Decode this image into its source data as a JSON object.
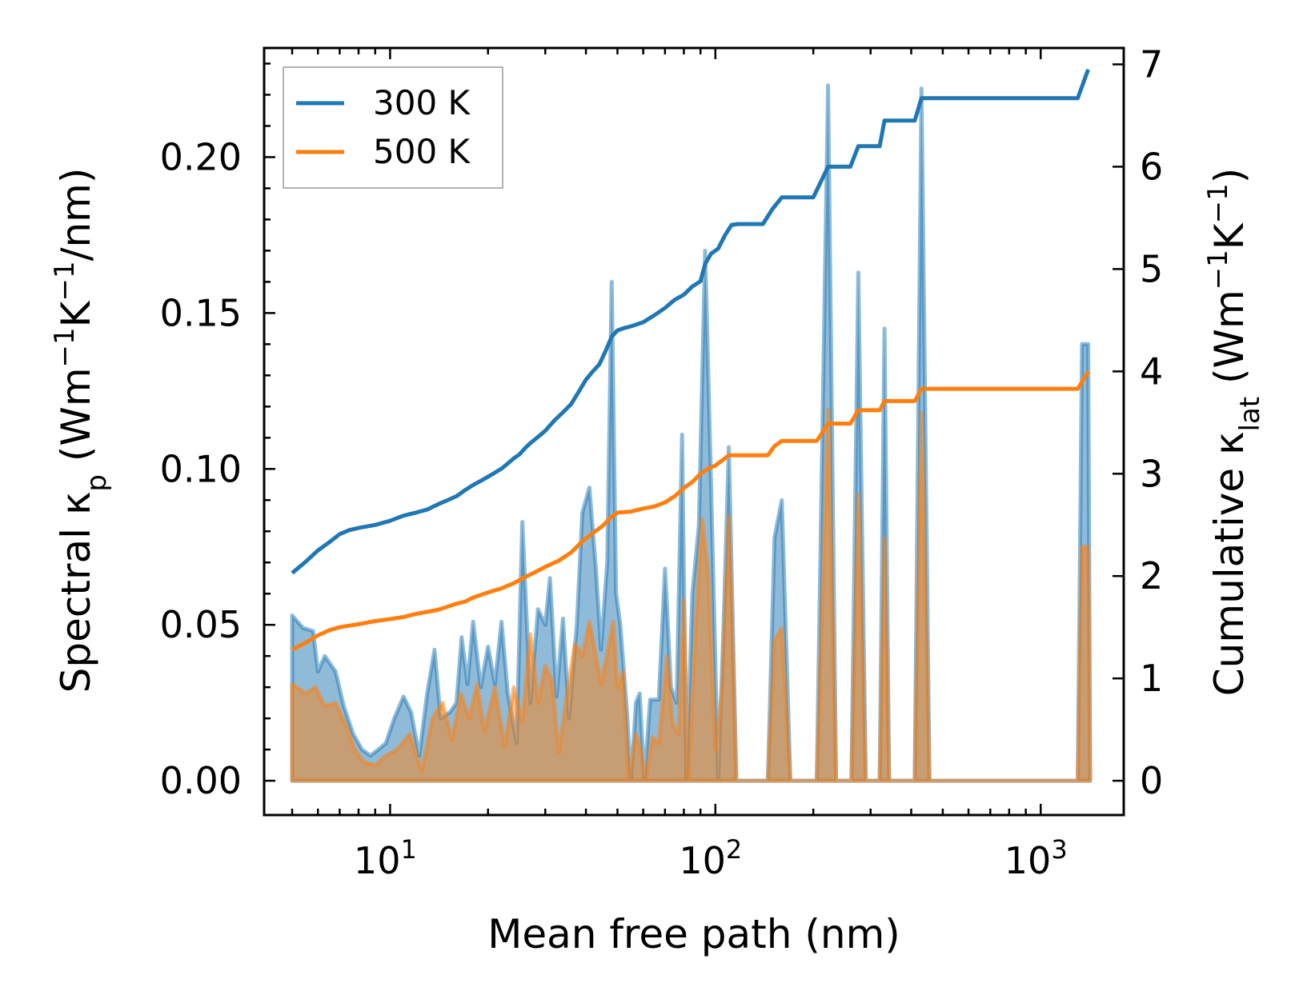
{
  "chart_data": {
    "type": "line",
    "xscale": "log",
    "xlabel": "Mean free path (nm)",
    "ylabel_left": "Spectral κp (Wm−1K−1/nm)",
    "ylabel_right": "Cumulative κlat (Wm−1K−1)",
    "xlim": [
      4.1,
      1800
    ],
    "ylim_left": [
      -0.011,
      0.235
    ],
    "ylim_right": [
      -0.335,
      7.16
    ],
    "x_ticks": [
      {
        "label_base": "10",
        "label_exp": "1",
        "value": 10
      },
      {
        "label_base": "10",
        "label_exp": "2",
        "value": 100
      },
      {
        "label_base": "10",
        "label_exp": "3",
        "value": 1000
      }
    ],
    "y_left_ticks": [
      {
        "label": "0.00",
        "value": 0.0
      },
      {
        "label": "0.05",
        "value": 0.05
      },
      {
        "label": "0.10",
        "value": 0.1
      },
      {
        "label": "0.15",
        "value": 0.15
      },
      {
        "label": "0.20",
        "value": 0.2
      }
    ],
    "y_right_ticks": [
      {
        "label": "0",
        "value": 0
      },
      {
        "label": "1",
        "value": 1
      },
      {
        "label": "2",
        "value": 2
      },
      {
        "label": "3",
        "value": 3
      },
      {
        "label": "4",
        "value": 4
      },
      {
        "label": "5",
        "value": 5
      },
      {
        "label": "6",
        "value": 6
      },
      {
        "label": "7",
        "value": 7
      }
    ],
    "legend": {
      "position": "upper-left",
      "entries": [
        {
          "label": "300 K",
          "color": "#1f77b4"
        },
        {
          "label": "500 K",
          "color": "#ff7f0e"
        }
      ]
    },
    "series": [
      {
        "name": "300 K spectral",
        "axis": "left",
        "kind": "area",
        "color": "#1f77b4",
        "points": [
          [
            5.0,
            0.053
          ],
          [
            5.4,
            0.049
          ],
          [
            5.8,
            0.048
          ],
          [
            6.0,
            0.035
          ],
          [
            6.3,
            0.04
          ],
          [
            6.8,
            0.035
          ],
          [
            7.2,
            0.024
          ],
          [
            7.7,
            0.015
          ],
          [
            8.2,
            0.01
          ],
          [
            8.7,
            0.008
          ],
          [
            9.2,
            0.01
          ],
          [
            9.7,
            0.012
          ],
          [
            10.3,
            0.02
          ],
          [
            11.0,
            0.027
          ],
          [
            11.6,
            0.022
          ],
          [
            12.3,
            0.008
          ],
          [
            13.0,
            0.028
          ],
          [
            13.7,
            0.042
          ],
          [
            14.3,
            0.02
          ],
          [
            15.3,
            0.022
          ],
          [
            16.0,
            0.025
          ],
          [
            16.6,
            0.046
          ],
          [
            17.3,
            0.031
          ],
          [
            18.0,
            0.051
          ],
          [
            19.0,
            0.03
          ],
          [
            20.0,
            0.043
          ],
          [
            21.0,
            0.031
          ],
          [
            22.0,
            0.051
          ],
          [
            23.0,
            0.028
          ],
          [
            24.5,
            0.012
          ],
          [
            25.5,
            0.083
          ],
          [
            27.0,
            0.025
          ],
          [
            28.5,
            0.055
          ],
          [
            30.0,
            0.05
          ],
          [
            31.0,
            0.065
          ],
          [
            32.5,
            0.027
          ],
          [
            34.0,
            0.052
          ],
          [
            35.5,
            0.02
          ],
          [
            37.5,
            0.05
          ],
          [
            39.0,
            0.086
          ],
          [
            41.0,
            0.094
          ],
          [
            43.0,
            0.067
          ],
          [
            44.5,
            0.042
          ],
          [
            46.5,
            0.07
          ],
          [
            48.0,
            0.16
          ],
          [
            49.5,
            0.06
          ],
          [
            51.0,
            0.05
          ],
          [
            53.5,
            0.022
          ],
          [
            55.0,
            0.0
          ],
          [
            57.0,
            0.025
          ],
          [
            58.5,
            0.028
          ],
          [
            60.5,
            0.0
          ],
          [
            63.0,
            0.026
          ],
          [
            65.0,
            0.026
          ],
          [
            67.0,
            0.026
          ],
          [
            70.0,
            0.068
          ],
          [
            73.0,
            0.03
          ],
          [
            76.0,
            0.025
          ],
          [
            79.0,
            0.111
          ],
          [
            81.5,
            0.0
          ],
          [
            85.0,
            0.06
          ],
          [
            89.0,
            0.082
          ],
          [
            93.0,
            0.17
          ],
          [
            97.0,
            0.095
          ],
          [
            102.0,
            0.0
          ],
          [
            106.0,
            0.05
          ],
          [
            110.0,
            0.107
          ],
          [
            116.0,
            0.0
          ],
          [
            120.0,
            0.0
          ],
          [
            145.0,
            0.0
          ],
          [
            152.0,
            0.078
          ],
          [
            160.0,
            0.09
          ],
          [
            170.0,
            0.0
          ],
          [
            205.0,
            0.0
          ],
          [
            222.0,
            0.223
          ],
          [
            235.0,
            0.0
          ],
          [
            262.0,
            0.0
          ],
          [
            275.0,
            0.163
          ],
          [
            290.0,
            0.0
          ],
          [
            320.0,
            0.0
          ],
          [
            331.0,
            0.145
          ],
          [
            342.0,
            0.0
          ],
          [
            410.0,
            0.0
          ],
          [
            430.0,
            0.222
          ],
          [
            455.0,
            0.0
          ],
          [
            1300.0,
            0.0
          ],
          [
            1340.0,
            0.14
          ],
          [
            1400.0,
            0.14
          ],
          [
            1420.0,
            0.0
          ]
        ]
      },
      {
        "name": "500 K spectral",
        "axis": "left",
        "kind": "area",
        "color": "#ff7f0e",
        "points": [
          [
            5.0,
            0.031
          ],
          [
            5.5,
            0.028
          ],
          [
            5.9,
            0.03
          ],
          [
            6.3,
            0.024
          ],
          [
            6.8,
            0.025
          ],
          [
            7.3,
            0.018
          ],
          [
            7.8,
            0.01
          ],
          [
            8.3,
            0.006
          ],
          [
            9.0,
            0.005
          ],
          [
            9.7,
            0.008
          ],
          [
            10.5,
            0.01
          ],
          [
            11.5,
            0.015
          ],
          [
            12.5,
            0.003
          ],
          [
            13.5,
            0.02
          ],
          [
            14.5,
            0.025
          ],
          [
            15.5,
            0.013
          ],
          [
            16.5,
            0.028
          ],
          [
            17.5,
            0.02
          ],
          [
            18.5,
            0.031
          ],
          [
            19.5,
            0.016
          ],
          [
            21.0,
            0.03
          ],
          [
            22.5,
            0.011
          ],
          [
            24.0,
            0.03
          ],
          [
            25.5,
            0.019
          ],
          [
            27.0,
            0.047
          ],
          [
            28.5,
            0.025
          ],
          [
            30.0,
            0.037
          ],
          [
            31.5,
            0.032
          ],
          [
            33.0,
            0.009
          ],
          [
            35.0,
            0.028
          ],
          [
            37.0,
            0.044
          ],
          [
            39.0,
            0.04
          ],
          [
            41.0,
            0.051
          ],
          [
            43.0,
            0.04
          ],
          [
            44.5,
            0.031
          ],
          [
            46.5,
            0.041
          ],
          [
            48.5,
            0.051
          ],
          [
            50.0,
            0.03
          ],
          [
            52.0,
            0.035
          ],
          [
            54.0,
            0.0
          ],
          [
            57.0,
            0.015
          ],
          [
            59.0,
            0.01
          ],
          [
            61.0,
            0.0
          ],
          [
            64.0,
            0.014
          ],
          [
            67.0,
            0.012
          ],
          [
            71.0,
            0.04
          ],
          [
            74.0,
            0.018
          ],
          [
            77.0,
            0.015
          ],
          [
            80.0,
            0.058
          ],
          [
            82.5,
            0.0
          ],
          [
            87.0,
            0.05
          ],
          [
            91.0,
            0.084
          ],
          [
            95.0,
            0.067
          ],
          [
            100.0,
            0.01
          ],
          [
            105.0,
            0.03
          ],
          [
            110.0,
            0.085
          ],
          [
            116.0,
            0.0
          ],
          [
            145.0,
            0.0
          ],
          [
            152.0,
            0.045
          ],
          [
            160.0,
            0.049
          ],
          [
            170.0,
            0.0
          ],
          [
            205.0,
            0.0
          ],
          [
            222.0,
            0.119
          ],
          [
            235.0,
            0.0
          ],
          [
            262.0,
            0.0
          ],
          [
            275.0,
            0.092
          ],
          [
            290.0,
            0.0
          ],
          [
            320.0,
            0.0
          ],
          [
            331.0,
            0.078
          ],
          [
            342.0,
            0.0
          ],
          [
            410.0,
            0.0
          ],
          [
            430.0,
            0.118
          ],
          [
            455.0,
            0.0
          ],
          [
            1300.0,
            0.0
          ],
          [
            1340.0,
            0.075
          ],
          [
            1400.0,
            0.075
          ],
          [
            1420.0,
            0.0
          ]
        ]
      },
      {
        "name": "300 K",
        "axis": "right",
        "kind": "line",
        "color": "#1f77b4",
        "points": [
          [
            5.0,
            2.03
          ],
          [
            5.5,
            2.14
          ],
          [
            6.0,
            2.25
          ],
          [
            6.5,
            2.33
          ],
          [
            7.0,
            2.41
          ],
          [
            7.5,
            2.45
          ],
          [
            8.0,
            2.47
          ],
          [
            9.0,
            2.5
          ],
          [
            10.0,
            2.54
          ],
          [
            11.0,
            2.59
          ],
          [
            12.0,
            2.62
          ],
          [
            13.0,
            2.65
          ],
          [
            14.0,
            2.7
          ],
          [
            15.0,
            2.74
          ],
          [
            16.0,
            2.78
          ],
          [
            17.0,
            2.84
          ],
          [
            18.0,
            2.89
          ],
          [
            19.0,
            2.93
          ],
          [
            20.0,
            2.97
          ],
          [
            21.0,
            3.01
          ],
          [
            22.0,
            3.05
          ],
          [
            23.0,
            3.1
          ],
          [
            24.0,
            3.15
          ],
          [
            25.0,
            3.19
          ],
          [
            26.0,
            3.25
          ],
          [
            27.0,
            3.3
          ],
          [
            28.0,
            3.34
          ],
          [
            29.0,
            3.38
          ],
          [
            30.0,
            3.42
          ],
          [
            32.0,
            3.52
          ],
          [
            34.0,
            3.6
          ],
          [
            36.0,
            3.68
          ],
          [
            38.0,
            3.8
          ],
          [
            40.0,
            3.92
          ],
          [
            42.0,
            4.0
          ],
          [
            44.0,
            4.07
          ],
          [
            46.0,
            4.2
          ],
          [
            48.0,
            4.34
          ],
          [
            50.0,
            4.4
          ],
          [
            52.0,
            4.42
          ],
          [
            55.0,
            4.44
          ],
          [
            60.0,
            4.48
          ],
          [
            65.0,
            4.55
          ],
          [
            70.0,
            4.62
          ],
          [
            75.0,
            4.7
          ],
          [
            80.0,
            4.75
          ],
          [
            85.0,
            4.83
          ],
          [
            90.0,
            4.88
          ],
          [
            93.0,
            5.05
          ],
          [
            97.0,
            5.15
          ],
          [
            102.0,
            5.2
          ],
          [
            107.0,
            5.33
          ],
          [
            112.0,
            5.43
          ],
          [
            117.0,
            5.44
          ],
          [
            140.0,
            5.44
          ],
          [
            150.0,
            5.59
          ],
          [
            160.0,
            5.7
          ],
          [
            200.0,
            5.7
          ],
          [
            222.0,
            6.0
          ],
          [
            260.0,
            6.0
          ],
          [
            275.0,
            6.2
          ],
          [
            320.0,
            6.2
          ],
          [
            331.0,
            6.45
          ],
          [
            410.0,
            6.45
          ],
          [
            430.0,
            6.67
          ],
          [
            1300.0,
            6.67
          ],
          [
            1400.0,
            6.95
          ]
        ]
      },
      {
        "name": "500 K",
        "axis": "right",
        "kind": "line",
        "color": "#ff7f0e",
        "points": [
          [
            5.0,
            1.28
          ],
          [
            5.5,
            1.35
          ],
          [
            6.0,
            1.42
          ],
          [
            6.5,
            1.47
          ],
          [
            7.0,
            1.5
          ],
          [
            8.0,
            1.53
          ],
          [
            9.0,
            1.56
          ],
          [
            10.0,
            1.58
          ],
          [
            11.0,
            1.6
          ],
          [
            12.0,
            1.63
          ],
          [
            13.0,
            1.65
          ],
          [
            14.0,
            1.67
          ],
          [
            15.0,
            1.7
          ],
          [
            16.0,
            1.73
          ],
          [
            17.0,
            1.75
          ],
          [
            18.0,
            1.79
          ],
          [
            20.0,
            1.84
          ],
          [
            22.0,
            1.88
          ],
          [
            24.0,
            1.93
          ],
          [
            26.0,
            1.99
          ],
          [
            28.0,
            2.04
          ],
          [
            30.0,
            2.09
          ],
          [
            33.0,
            2.15
          ],
          [
            36.0,
            2.23
          ],
          [
            39.0,
            2.34
          ],
          [
            42.0,
            2.42
          ],
          [
            45.0,
            2.49
          ],
          [
            48.0,
            2.58
          ],
          [
            50.0,
            2.62
          ],
          [
            55.0,
            2.63
          ],
          [
            60.0,
            2.66
          ],
          [
            65.0,
            2.68
          ],
          [
            70.0,
            2.72
          ],
          [
            75.0,
            2.78
          ],
          [
            80.0,
            2.86
          ],
          [
            85.0,
            2.92
          ],
          [
            90.0,
            3.0
          ],
          [
            95.0,
            3.05
          ],
          [
            100.0,
            3.08
          ],
          [
            105.0,
            3.13
          ],
          [
            110.0,
            3.18
          ],
          [
            145.0,
            3.18
          ],
          [
            152.0,
            3.27
          ],
          [
            160.0,
            3.32
          ],
          [
            205.0,
            3.32
          ],
          [
            222.0,
            3.49
          ],
          [
            260.0,
            3.49
          ],
          [
            275.0,
            3.62
          ],
          [
            320.0,
            3.62
          ],
          [
            331.0,
            3.71
          ],
          [
            410.0,
            3.71
          ],
          [
            430.0,
            3.83
          ],
          [
            1300.0,
            3.83
          ],
          [
            1400.0,
            4.0
          ]
        ]
      }
    ]
  }
}
